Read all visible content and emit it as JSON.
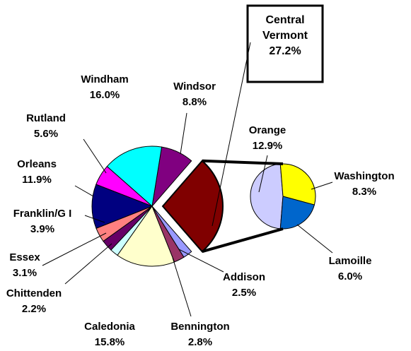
{
  "chart_data": {
    "type": "pie-of-pie",
    "categories": [
      "Central Vermont",
      "Windsor",
      "Windham",
      "Rutland",
      "Orleans",
      "Franklin/G I",
      "Essex",
      "Chittenden",
      "Caledonia",
      "Bennington",
      "Addison"
    ],
    "values": [
      27.2,
      8.8,
      16.0,
      5.6,
      11.9,
      3.9,
      3.1,
      2.2,
      15.8,
      2.8,
      2.5
    ],
    "value_labels": [
      "27.2%",
      "8.8%",
      "16.0%",
      "5.6%",
      "11.9%",
      "3.9%",
      "3.1%",
      "2.2%",
      "15.8%",
      "2.8%",
      "2.5%"
    ],
    "colors": [
      "#800000",
      "#800080",
      "#00ffff",
      "#ff00ff",
      "#000080",
      "#ff8080",
      "#660066",
      "#ccffff",
      "#ffffcc",
      "#993366",
      "#9999ff"
    ],
    "secondary": {
      "categories": [
        "Orange",
        "Washington",
        "Lamoille"
      ],
      "values": [
        12.9,
        8.3,
        6.0
      ],
      "value_labels": [
        "12.9%",
        "8.3%",
        "6.0%"
      ],
      "colors": [
        "#ccccff",
        "#ffff00",
        "#0066cc"
      ]
    }
  }
}
